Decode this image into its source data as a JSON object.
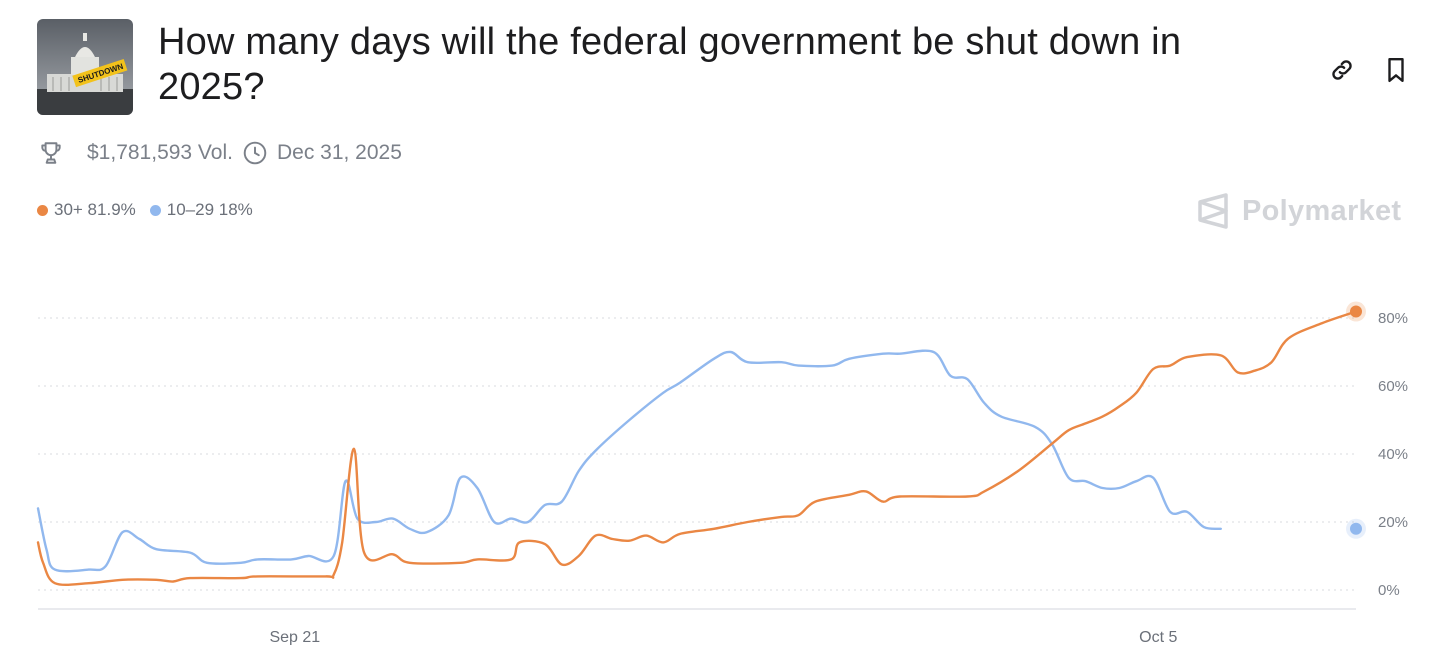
{
  "header": {
    "title": "How many days will the federal government be shut down in 2025?",
    "thumbnail_icon": "capitol-shutdown-image",
    "thumbnail_text": "SHUTDOWN"
  },
  "actions": {
    "link_icon": "link-icon",
    "bookmark_icon": "bookmark-icon"
  },
  "meta": {
    "volume": "$1,781,593 Vol.",
    "end_date": "Dec 31, 2025"
  },
  "legend": [
    {
      "label": "30+ 81.9%",
      "color": "#ea8744"
    },
    {
      "label": "10–29 18%",
      "color": "#91b8ee"
    }
  ],
  "brand": {
    "name": "Polymarket"
  },
  "chart_data": {
    "type": "line",
    "x_tick_labels": [
      "Sep 21",
      "Oct 5"
    ],
    "y_tick_labels": [
      "0%",
      "20%",
      "40%",
      "60%",
      "80%"
    ],
    "ylim": [
      0,
      80
    ],
    "grid": true,
    "series": [
      {
        "name": "30+",
        "color": "#ea8744",
        "last_value": 81.9,
        "points": [
          [
            0,
            14
          ],
          [
            0.3,
            8
          ],
          [
            1,
            2
          ],
          [
            3,
            2
          ],
          [
            5,
            3
          ],
          [
            7,
            3
          ],
          [
            8,
            2.5
          ],
          [
            9,
            3.5
          ],
          [
            12,
            3.5
          ],
          [
            13,
            4
          ],
          [
            17,
            4
          ],
          [
            17.5,
            4.5
          ],
          [
            18,
            14
          ],
          [
            18.7,
            41.5
          ],
          [
            19.3,
            11
          ],
          [
            21,
            10.5
          ],
          [
            22,
            8
          ],
          [
            25,
            8
          ],
          [
            26,
            9
          ],
          [
            28,
            9
          ],
          [
            28.5,
            14
          ],
          [
            30,
            13.5
          ],
          [
            31,
            7.5
          ],
          [
            32,
            10
          ],
          [
            33,
            16
          ],
          [
            34,
            15
          ],
          [
            35,
            14.5
          ],
          [
            36,
            16
          ],
          [
            37,
            14
          ],
          [
            38,
            16.5
          ],
          [
            40,
            18
          ],
          [
            42,
            20
          ],
          [
            44,
            21.5
          ],
          [
            45,
            22
          ],
          [
            46,
            26
          ],
          [
            48,
            28
          ],
          [
            49,
            29
          ],
          [
            50,
            26
          ],
          [
            51,
            27.5
          ],
          [
            55,
            27.5
          ],
          [
            56,
            29
          ],
          [
            58,
            35
          ],
          [
            60,
            43
          ],
          [
            61,
            47
          ],
          [
            62,
            49
          ],
          [
            63,
            51
          ],
          [
            64,
            54
          ],
          [
            65,
            58
          ],
          [
            66,
            65
          ],
          [
            67,
            66
          ],
          [
            68,
            68.5
          ],
          [
            70,
            69
          ],
          [
            71,
            64
          ],
          [
            72,
            64.5
          ],
          [
            73,
            67
          ],
          [
            74,
            74
          ],
          [
            76,
            78.5
          ],
          [
            78,
            81.9
          ]
        ]
      },
      {
        "name": "10–29",
        "color": "#91b8ee",
        "last_value": 18,
        "points": [
          [
            0,
            24
          ],
          [
            0.5,
            12
          ],
          [
            1,
            6
          ],
          [
            3,
            6
          ],
          [
            4,
            7
          ],
          [
            5,
            17
          ],
          [
            6,
            15
          ],
          [
            7,
            12
          ],
          [
            9,
            11
          ],
          [
            10,
            8
          ],
          [
            12,
            8
          ],
          [
            13,
            9
          ],
          [
            15,
            9
          ],
          [
            16,
            10
          ],
          [
            17.5,
            10
          ],
          [
            18.2,
            32
          ],
          [
            18.9,
            21
          ],
          [
            20,
            20
          ],
          [
            21,
            21
          ],
          [
            22,
            18
          ],
          [
            23,
            17
          ],
          [
            24.3,
            22
          ],
          [
            25,
            33
          ],
          [
            26,
            30
          ],
          [
            27,
            20
          ],
          [
            28,
            21
          ],
          [
            29,
            20
          ],
          [
            30,
            25
          ],
          [
            31,
            26
          ],
          [
            32,
            35
          ],
          [
            33,
            41
          ],
          [
            35,
            50
          ],
          [
            37,
            58
          ],
          [
            38,
            61
          ],
          [
            40,
            68
          ],
          [
            41,
            70
          ],
          [
            42,
            67
          ],
          [
            44,
            67
          ],
          [
            45,
            66
          ],
          [
            47,
            66
          ],
          [
            48,
            68
          ],
          [
            50,
            69.5
          ],
          [
            51,
            69.5
          ],
          [
            53,
            70
          ],
          [
            54,
            63
          ],
          [
            55,
            62
          ],
          [
            56,
            55
          ],
          [
            57,
            51
          ],
          [
            59,
            48
          ],
          [
            60,
            43
          ],
          [
            61,
            33
          ],
          [
            62,
            32
          ],
          [
            63,
            30
          ],
          [
            64,
            30
          ],
          [
            65,
            32
          ],
          [
            66,
            33
          ],
          [
            67,
            23
          ],
          [
            68,
            23
          ],
          [
            69,
            18.5
          ],
          [
            70,
            18
          ]
        ]
      }
    ]
  }
}
